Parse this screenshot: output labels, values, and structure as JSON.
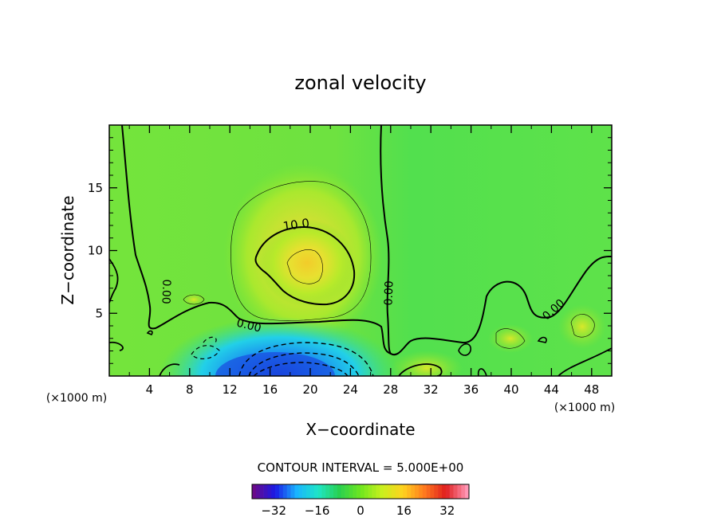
{
  "chart_data": {
    "type": "heatmap",
    "title": "zonal velocity",
    "xlabel": "X−coordinate",
    "ylabel": "Z−coordinate",
    "x_unit_label": "(×1000 m)",
    "z_unit_label": "(×1000 m)",
    "xlim": [
      0,
      50
    ],
    "ylim": [
      0,
      20
    ],
    "x_ticks": [
      4,
      8,
      12,
      16,
      20,
      24,
      28,
      32,
      36,
      40,
      44,
      48
    ],
    "y_ticks": [
      5,
      10,
      15
    ],
    "contour_interval_text": "CONTOUR INTERVAL = 5.000E+00",
    "contour_labels": [
      "10.0",
      "0.00",
      "0.00",
      "0.00",
      "0.00",
      "0.00"
    ],
    "colorbar": {
      "range": [
        -40,
        40
      ],
      "ticks": [
        -32,
        -16,
        0,
        16,
        32
      ],
      "tick_labels": [
        "−32",
        "−16",
        "0",
        "16",
        "32"
      ],
      "colors": [
        "#6a0a8a",
        "#1a1ae6",
        "#1ab4ff",
        "#1ee6c8",
        "#28d050",
        "#6ee61e",
        "#c8f01e",
        "#ffd21e",
        "#ff7a1e",
        "#e01e1e",
        "#ff96b4"
      ]
    },
    "features": [
      {
        "name": "positive jet core",
        "x": 19.5,
        "z": 8.5,
        "value": 13
      },
      {
        "name": "negative jet core",
        "x": 19,
        "z": 0.5,
        "value": -25
      },
      {
        "name": "weak positive patch",
        "x": 31.5,
        "z": 0.5,
        "value": 8
      },
      {
        "name": "weak positive patch",
        "x": 47,
        "z": 4,
        "value": 6
      }
    ]
  }
}
